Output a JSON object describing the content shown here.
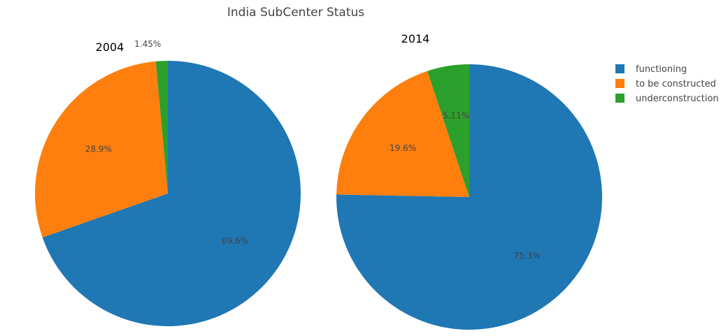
{
  "chart_data": {
    "type": "pie",
    "title": "India SubCenter Status",
    "categories": [
      "functioning",
      "to be constructed",
      "underconstruction"
    ],
    "colors": {
      "functioning": "#1f77b4",
      "to be constructed": "#ff7f0e",
      "underconstruction": "#2ca02c"
    },
    "legend_position": "top-right",
    "pies": [
      {
        "name": "2004",
        "labels": [
          "functioning",
          "to be constructed",
          "underconstruction"
        ],
        "values": [
          69.6,
          28.9,
          1.45
        ],
        "text": [
          "69.6%",
          "28.9%",
          "1.45%"
        ]
      },
      {
        "name": "2014",
        "labels": [
          "functioning",
          "to be constructed",
          "underconstruction"
        ],
        "values": [
          75.3,
          19.6,
          5.11
        ],
        "text": [
          "75.3%",
          "19.6%",
          "5.11%"
        ]
      }
    ]
  }
}
